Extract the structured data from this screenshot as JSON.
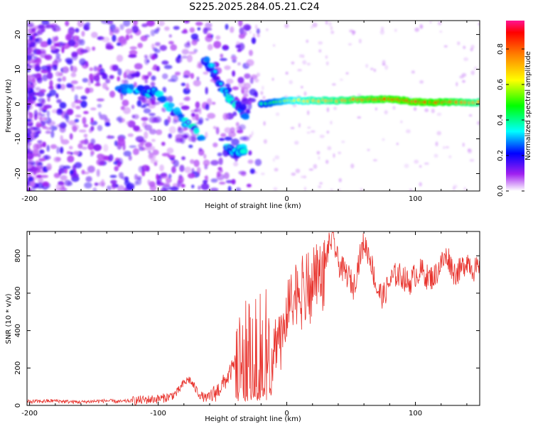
{
  "title": "S225.2025.284.05.21.C24",
  "chart_data": [
    {
      "type": "heatmap",
      "xlabel": "Height of straight line (km)",
      "ylabel": "Frequency (Hz)",
      "xlim": [
        -202,
        150
      ],
      "ylim": [
        -25,
        24
      ],
      "xticks": [
        -200,
        -100,
        0,
        100
      ],
      "yticks": [
        -20,
        -10,
        0,
        10,
        20
      ],
      "colorbar": {
        "label": "Normalized spectral amplitude",
        "range": [
          0,
          0.96
        ],
        "ticks": [
          0.0,
          0.2,
          0.4,
          0.6,
          0.8
        ],
        "tick_labels": [
          "0.0",
          "0.2",
          "0.4",
          "0.6",
          "0.8"
        ]
      },
      "features": [
        {
          "name": "left-diagonal-branch",
          "x": [
            -130,
            -115,
            -100,
            -90,
            -80,
            -70,
            -65
          ],
          "y": [
            4,
            4,
            3,
            -1,
            -5,
            -8,
            -10
          ]
        },
        {
          "name": "right-diagonal-branch",
          "x": [
            -65,
            -58,
            -52,
            -45,
            -38,
            -32
          ],
          "y": [
            13,
            10,
            6,
            2,
            0,
            -3
          ]
        },
        {
          "name": "lower-branch",
          "x": [
            -47,
            -40,
            -33
          ],
          "y": [
            -12,
            -14,
            -13
          ]
        },
        {
          "name": "horizontal-line",
          "x": [
            -20,
            0,
            20,
            40,
            60,
            80,
            100,
            120,
            150
          ],
          "y": [
            0,
            1,
            1,
            1,
            1.3,
            1.5,
            0.6,
            0.5,
            0.5
          ],
          "amplitude": [
            0.4,
            0.6,
            0.7,
            0.75,
            0.85,
            0.9,
            0.95,
            0.9,
            0.75
          ]
        }
      ]
    },
    {
      "type": "line",
      "xlabel": "Height of straight line (km)",
      "ylabel": "SNR (10 * v/v)",
      "xlim": [
        -202,
        150
      ],
      "ylim": [
        0,
        930
      ],
      "xticks": [
        -200,
        -100,
        0,
        100
      ],
      "yticks": [
        0,
        200,
        400,
        600,
        800
      ],
      "series": [
        {
          "name": "SNR",
          "color": "#e8332d",
          "x": [
            -202,
            -190,
            -180,
            -170,
            -160,
            -150,
            -140,
            -130,
            -120,
            -110,
            -100,
            -95,
            -90,
            -85,
            -80,
            -76,
            -72,
            -68,
            -64,
            -60,
            -55,
            -50,
            -45,
            -40,
            -36,
            -32,
            -28,
            -24,
            -20,
            -18,
            -15,
            -12,
            -10,
            -6,
            -2,
            0,
            4,
            8,
            12,
            16,
            20,
            25,
            30,
            33,
            36,
            40,
            44,
            48,
            52,
            56,
            60,
            65,
            70,
            75,
            80,
            85,
            90,
            95,
            100,
            105,
            110,
            115,
            120,
            125,
            130,
            135,
            140,
            145,
            150
          ],
          "y": [
            20,
            22,
            25,
            20,
            18,
            22,
            25,
            20,
            25,
            30,
            35,
            40,
            50,
            70,
            120,
            140,
            100,
            60,
            40,
            45,
            70,
            110,
            160,
            230,
            300,
            340,
            330,
            360,
            420,
            430,
            400,
            300,
            320,
            390,
            460,
            500,
            570,
            630,
            640,
            660,
            680,
            720,
            770,
            860,
            900,
            760,
            720,
            690,
            630,
            770,
            870,
            790,
            620,
            580,
            660,
            700,
            690,
            650,
            700,
            720,
            680,
            690,
            760,
            800,
            710,
            720,
            780,
            730,
            720
          ]
        }
      ]
    }
  ]
}
